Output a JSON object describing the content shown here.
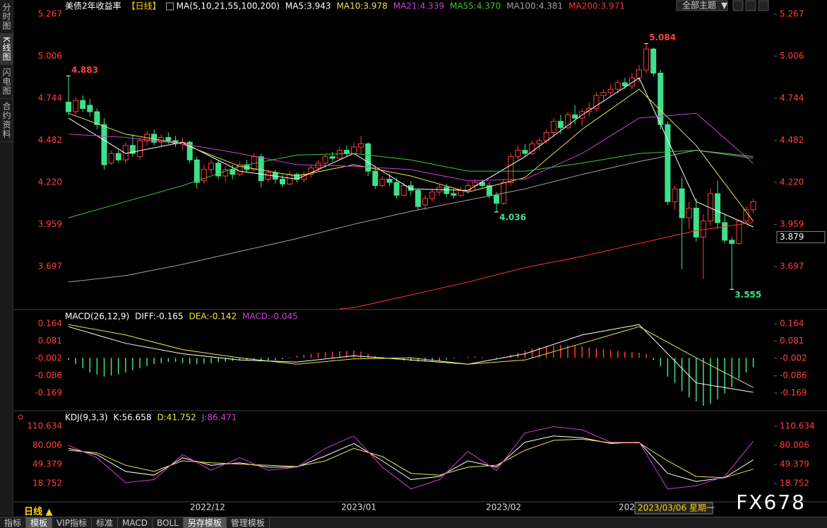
{
  "sidebar_tabs": [
    "分时图",
    "K线图",
    "闪电图",
    "合约资料"
  ],
  "theme_button": "全部主题",
  "period": "日线",
  "bottom_tabs": [
    "指标",
    "模板",
    "VIP指标",
    "标准",
    "MACD",
    "BOLL",
    "另存模板",
    "管理模板"
  ],
  "watermark": "FX678",
  "chart_data": [
    {
      "type": "candlestick",
      "title": "美债2年收益率",
      "period_label": "【日线】",
      "legend_prefix": "MA(5,10,21,55,100,200)",
      "up_color": "#ff3c3c",
      "down_color": "#3ee08c",
      "candles": [
        [
          4.72,
          4.883,
          4.64,
          4.66
        ],
        [
          4.66,
          4.75,
          4.64,
          4.73
        ],
        [
          4.73,
          4.76,
          4.66,
          4.68
        ],
        [
          4.7,
          4.74,
          4.63,
          4.66
        ],
        [
          4.66,
          4.68,
          4.55,
          4.58
        ],
        [
          4.58,
          4.62,
          4.3,
          4.33
        ],
        [
          4.34,
          4.42,
          4.33,
          4.4
        ],
        [
          4.4,
          4.42,
          4.34,
          4.36
        ],
        [
          4.36,
          4.47,
          4.34,
          4.45
        ],
        [
          4.45,
          4.52,
          4.38,
          4.4
        ],
        [
          4.38,
          4.5,
          4.36,
          4.48
        ],
        [
          4.48,
          4.54,
          4.45,
          4.52
        ],
        [
          4.52,
          4.55,
          4.45,
          4.47
        ],
        [
          4.47,
          4.52,
          4.44,
          4.5
        ],
        [
          4.5,
          4.53,
          4.46,
          4.48
        ],
        [
          4.48,
          4.51,
          4.44,
          4.46
        ],
        [
          4.46,
          4.5,
          4.42,
          4.47
        ],
        [
          4.47,
          4.48,
          4.34,
          4.36
        ],
        [
          4.36,
          4.38,
          4.18,
          4.22
        ],
        [
          4.23,
          4.33,
          4.21,
          4.3
        ],
        [
          4.3,
          4.36,
          4.27,
          4.34
        ],
        [
          4.34,
          4.36,
          4.24,
          4.26
        ],
        [
          4.26,
          4.32,
          4.22,
          4.3
        ],
        [
          4.3,
          4.33,
          4.24,
          4.27
        ],
        [
          4.27,
          4.35,
          4.26,
          4.33
        ],
        [
          4.33,
          4.36,
          4.28,
          4.3
        ],
        [
          4.3,
          4.4,
          4.29,
          4.38
        ],
        [
          4.38,
          4.4,
          4.19,
          4.23
        ],
        [
          4.24,
          4.3,
          4.22,
          4.28
        ],
        [
          4.28,
          4.3,
          4.21,
          4.24
        ],
        [
          4.24,
          4.27,
          4.19,
          4.21
        ],
        [
          4.21,
          4.29,
          4.2,
          4.27
        ],
        [
          4.27,
          4.28,
          4.22,
          4.24
        ],
        [
          4.24,
          4.29,
          4.22,
          4.27
        ],
        [
          4.27,
          4.33,
          4.25,
          4.31
        ],
        [
          4.31,
          4.36,
          4.29,
          4.34
        ],
        [
          4.34,
          4.4,
          4.31,
          4.38
        ],
        [
          4.38,
          4.41,
          4.35,
          4.37
        ],
        [
          4.37,
          4.44,
          4.36,
          4.42
        ],
        [
          4.42,
          4.45,
          4.38,
          4.4
        ],
        [
          4.4,
          4.47,
          4.39,
          4.44
        ],
        [
          4.44,
          4.51,
          4.4,
          4.46
        ],
        [
          4.46,
          4.47,
          4.26,
          4.29
        ],
        [
          4.29,
          4.32,
          4.18,
          4.2
        ],
        [
          4.2,
          4.26,
          4.19,
          4.24
        ],
        [
          4.24,
          4.27,
          4.2,
          4.22
        ],
        [
          4.22,
          4.25,
          4.12,
          4.14
        ],
        [
          4.14,
          4.22,
          4.13,
          4.2
        ],
        [
          4.2,
          4.23,
          4.14,
          4.17
        ],
        [
          4.17,
          4.18,
          4.05,
          4.07
        ],
        [
          4.08,
          4.14,
          4.05,
          4.12
        ],
        [
          4.12,
          4.18,
          4.1,
          4.16
        ],
        [
          4.16,
          4.21,
          4.14,
          4.19
        ],
        [
          4.19,
          4.21,
          4.13,
          4.15
        ],
        [
          4.15,
          4.18,
          4.12,
          4.14
        ],
        [
          4.14,
          4.19,
          4.13,
          4.17
        ],
        [
          4.17,
          4.22,
          4.15,
          4.2
        ],
        [
          4.2,
          4.24,
          4.17,
          4.22
        ],
        [
          4.22,
          4.24,
          4.18,
          4.2
        ],
        [
          4.2,
          4.22,
          4.12,
          4.14
        ],
        [
          4.14,
          4.16,
          4.036,
          4.09
        ],
        [
          4.09,
          4.24,
          4.08,
          4.22
        ],
        [
          4.22,
          4.4,
          4.2,
          4.38
        ],
        [
          4.38,
          4.45,
          4.36,
          4.42
        ],
        [
          4.42,
          4.46,
          4.38,
          4.4
        ],
        [
          4.4,
          4.48,
          4.39,
          4.46
        ],
        [
          4.46,
          4.5,
          4.42,
          4.48
        ],
        [
          4.48,
          4.55,
          4.46,
          4.53
        ],
        [
          4.53,
          4.62,
          4.5,
          4.6
        ],
        [
          4.6,
          4.64,
          4.52,
          4.56
        ],
        [
          4.56,
          4.66,
          4.55,
          4.64
        ],
        [
          4.64,
          4.7,
          4.58,
          4.62
        ],
        [
          4.62,
          4.68,
          4.57,
          4.66
        ],
        [
          4.66,
          4.72,
          4.63,
          4.68
        ],
        [
          4.68,
          4.78,
          4.66,
          4.76
        ],
        [
          4.76,
          4.8,
          4.72,
          4.78
        ],
        [
          4.78,
          4.83,
          4.76,
          4.8
        ],
        [
          4.8,
          4.86,
          4.77,
          4.84
        ],
        [
          4.84,
          4.87,
          4.8,
          4.82
        ],
        [
          4.82,
          4.9,
          4.8,
          4.87
        ],
        [
          4.87,
          4.95,
          4.84,
          4.92
        ],
        [
          4.92,
          5.084,
          4.9,
          5.05
        ],
        [
          5.05,
          5.06,
          4.88,
          4.9
        ],
        [
          4.9,
          4.92,
          4.55,
          4.58
        ],
        [
          4.58,
          4.6,
          4.08,
          4.1
        ],
        [
          4.1,
          4.2,
          4.05,
          4.18
        ],
        [
          4.18,
          4.25,
          3.68,
          4.0
        ],
        [
          4.0,
          4.1,
          3.93,
          4.06
        ],
        [
          4.06,
          4.12,
          3.85,
          3.88
        ],
        [
          3.88,
          4.02,
          3.62,
          3.98
        ],
        [
          3.98,
          4.18,
          3.95,
          4.15
        ],
        [
          4.15,
          4.23,
          3.93,
          3.97
        ],
        [
          3.97,
          4.02,
          3.84,
          3.86
        ],
        [
          3.86,
          3.88,
          3.555,
          3.84
        ],
        [
          3.84,
          3.99,
          3.83,
          3.98
        ],
        [
          3.98,
          4.07,
          3.96,
          4.05
        ],
        [
          4.05,
          4.12,
          4.03,
          4.1
        ]
      ],
      "series": [
        {
          "name": "MA5:3.943",
          "color": "#ffffff",
          "x": [
            0,
            8,
            16,
            24,
            32,
            40,
            48,
            56,
            64,
            72,
            80,
            88,
            96
          ],
          "values": [
            4.62,
            4.4,
            4.47,
            4.29,
            4.24,
            4.4,
            4.18,
            4.17,
            4.38,
            4.64,
            4.87,
            4.1,
            3.943
          ]
        },
        {
          "name": "MA10:3.978",
          "color": "#e8e84a",
          "x": [
            0,
            8,
            16,
            24,
            32,
            40,
            48,
            56,
            64,
            72,
            80,
            88,
            96
          ],
          "values": [
            4.65,
            4.52,
            4.46,
            4.32,
            4.26,
            4.33,
            4.26,
            4.16,
            4.25,
            4.55,
            4.8,
            4.45,
            3.978
          ]
        },
        {
          "name": "MA21:4.339",
          "color": "#d23cd2",
          "x": [
            0,
            8,
            16,
            24,
            32,
            40,
            48,
            56,
            64,
            72,
            80,
            88,
            96
          ],
          "values": [
            4.52,
            4.5,
            4.46,
            4.4,
            4.33,
            4.32,
            4.3,
            4.23,
            4.24,
            4.4,
            4.62,
            4.65,
            4.339
          ]
        },
        {
          "name": "MA55:4.370",
          "color": "#3cc83c",
          "x": [
            0,
            8,
            16,
            24,
            32,
            40,
            48,
            56,
            64,
            72,
            80,
            88,
            96
          ],
          "values": [
            4.0,
            4.1,
            4.2,
            4.32,
            4.39,
            4.4,
            4.36,
            4.29,
            4.29,
            4.34,
            4.4,
            4.42,
            4.37
          ]
        },
        {
          "name": "MA100:4.381",
          "color": "#a0a0a0",
          "x": [
            0,
            8,
            16,
            24,
            32,
            40,
            48,
            56,
            64,
            72,
            80,
            88,
            96
          ],
          "values": [
            3.6,
            3.64,
            3.71,
            3.79,
            3.87,
            3.96,
            4.04,
            4.11,
            4.18,
            4.27,
            4.35,
            4.42,
            4.381
          ]
        },
        {
          "name": "MA200:3.971",
          "color": "#ff3030",
          "x": [
            38,
            40,
            48,
            56,
            64,
            72,
            80,
            88,
            96
          ],
          "values": [
            3.433,
            3.44,
            3.52,
            3.6,
            3.69,
            3.76,
            3.84,
            3.92,
            3.971
          ]
        }
      ],
      "ylim": [
        3.433,
        5.311
      ],
      "yticks": [
        5.267,
        5.006,
        4.744,
        4.482,
        {
          "value": 4.22,
          "label": "4.220"
        },
        3.959,
        3.697
      ],
      "xticks": [
        {
          "value": 19.5,
          "label": "2022/12"
        },
        {
          "value": 40.7,
          "label": "2023/01"
        },
        {
          "value": 61,
          "label": "2023/02"
        },
        {
          "value": 79.6,
          "label": "2023/03"
        }
      ],
      "annotations": [
        4.883,
        5.084,
        4.036,
        3.555
      ],
      "cursor_value": 3.879,
      "cursor_label": "2023/03/06 星期一"
    },
    {
      "type": "macd",
      "title": "MACD(26,12,9)",
      "pos_color": "#ff3c3c",
      "neg_color": "#3ee08c",
      "series": [
        {
          "name": "DIFF:-0.165",
          "color": "#ffffff",
          "x": [
            0,
            8,
            16,
            24,
            32,
            40,
            48,
            56,
            64,
            72,
            80,
            88,
            96
          ],
          "values": [
            0.15,
            0.07,
            0.02,
            -0.01,
            -0.02,
            0.01,
            -0.01,
            -0.03,
            0.02,
            0.11,
            0.16,
            -0.12,
            -0.165
          ]
        },
        {
          "name": "DEA:-0.142",
          "color": "#e8e84a",
          "x": [
            0,
            8,
            16,
            24,
            32,
            40,
            48,
            56,
            64,
            72,
            80,
            88,
            96
          ],
          "values": [
            0.16,
            0.11,
            0.04,
            0.0,
            -0.03,
            -0.005,
            0.0,
            -0.03,
            -0.01,
            0.07,
            0.15,
            0.0,
            -0.142
          ]
        }
      ],
      "histogram": {
        "name": "MACD:-0.045",
        "color": "#d23cd2",
        "values": [
          -0.01,
          -0.03,
          -0.05,
          -0.07,
          -0.08,
          -0.09,
          -0.085,
          -0.08,
          -0.07,
          -0.06,
          -0.05,
          -0.04,
          -0.03,
          -0.025,
          -0.02,
          -0.02,
          -0.025,
          -0.03,
          -0.03,
          -0.028,
          -0.025,
          -0.02,
          -0.018,
          -0.015,
          -0.012,
          -0.01,
          -0.008,
          -0.01,
          -0.012,
          -0.01,
          -0.006,
          0.004,
          0.01,
          0.015,
          0.02,
          0.025,
          0.028,
          0.03,
          0.032,
          0.033,
          0.035,
          0.03,
          0.02,
          0.01,
          0.004,
          -0.004,
          -0.008,
          -0.012,
          -0.015,
          -0.018,
          -0.018,
          -0.015,
          -0.012,
          -0.008,
          -0.004,
          0.002,
          0.006,
          0.008,
          0.005,
          0.0,
          -0.004,
          0.006,
          0.015,
          0.025,
          0.035,
          0.045,
          0.052,
          0.058,
          0.06,
          0.062,
          0.06,
          0.058,
          0.055,
          0.05,
          0.046,
          0.042,
          0.038,
          0.034,
          0.03,
          0.028,
          0.025,
          0.02,
          -0.01,
          -0.04,
          -0.09,
          -0.12,
          -0.16,
          -0.19,
          -0.21,
          -0.23,
          -0.22,
          -0.2,
          -0.17,
          -0.14,
          -0.1,
          -0.07,
          -0.045
        ]
      },
      "ylim": [
        -0.25,
        0.215
      ],
      "yticks": [
        0.164,
        0.081,
        -0.002,
        -0.086,
        -0.169
      ]
    },
    {
      "type": "kdj",
      "title": "KDJ(9,3,3)",
      "series": [
        {
          "name": "K:56.658",
          "color": "#ffffff",
          "x": [
            0,
            4,
            8,
            12,
            16,
            20,
            24,
            28,
            32,
            36,
            40,
            44,
            48,
            52,
            56,
            60,
            64,
            68,
            72,
            76,
            80,
            84,
            88,
            92,
            96
          ],
          "values": [
            75,
            65,
            38,
            32,
            60,
            48,
            52,
            45,
            45,
            63,
            83,
            55,
            25,
            30,
            55,
            45,
            85,
            95,
            92,
            83,
            85,
            35,
            22,
            28,
            56.658
          ]
        },
        {
          "name": "D:41.752",
          "color": "#e8e84a",
          "x": [
            0,
            4,
            8,
            12,
            16,
            20,
            24,
            28,
            32,
            36,
            40,
            44,
            48,
            52,
            56,
            60,
            64,
            68,
            72,
            76,
            80,
            84,
            88,
            92,
            96
          ],
          "values": [
            72,
            68,
            48,
            38,
            55,
            52,
            50,
            48,
            46,
            55,
            75,
            62,
            35,
            32,
            45,
            48,
            72,
            88,
            90,
            84,
            84,
            55,
            30,
            28,
            41.752
          ]
        },
        {
          "name": "J:86.471",
          "color": "#d23cd2",
          "x": [
            0,
            4,
            8,
            12,
            16,
            20,
            24,
            28,
            32,
            36,
            40,
            44,
            48,
            52,
            56,
            60,
            64,
            68,
            72,
            76,
            80,
            84,
            88,
            92,
            96
          ],
          "values": [
            80,
            60,
            20,
            25,
            65,
            40,
            60,
            40,
            45,
            75,
            95,
            45,
            10,
            25,
            70,
            40,
            100,
            110,
            105,
            85,
            85,
            10,
            15,
            30,
            86.471
          ]
        }
      ],
      "ylim": [
        -10.74,
        131.05
      ],
      "yticks": [
        110.634,
        80.006,
        49.379,
        18.752
      ]
    }
  ]
}
